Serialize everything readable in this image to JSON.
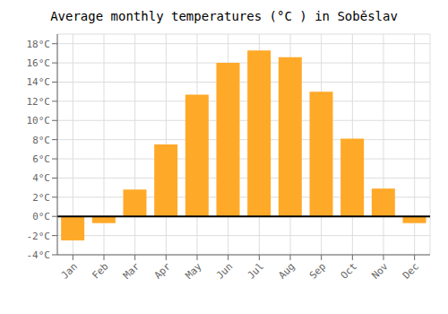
{
  "chart_data": {
    "type": "bar",
    "title": "Average monthly temperatures (°C ) in Soběslav",
    "categories": [
      "Jan",
      "Feb",
      "Mar",
      "Apr",
      "May",
      "Jun",
      "Jul",
      "Aug",
      "Sep",
      "Oct",
      "Nov",
      "Dec"
    ],
    "values": [
      -2.5,
      -0.7,
      2.8,
      7.5,
      12.7,
      16.0,
      17.3,
      16.6,
      13.0,
      8.1,
      2.9,
      -0.7
    ],
    "color": "#FFA928",
    "ylim": [
      -4,
      19
    ],
    "yticks": [
      {
        "value": -4,
        "label": "-4°C"
      },
      {
        "value": -2,
        "label": "-2°C"
      },
      {
        "value": 0,
        "label": "0°C"
      },
      {
        "value": 2,
        "label": "2°C"
      },
      {
        "value": 4,
        "label": "4°C"
      },
      {
        "value": 6,
        "label": "6°C"
      },
      {
        "value": 8,
        "label": "8°C"
      },
      {
        "value": 10,
        "label": "10°C"
      },
      {
        "value": 12,
        "label": "12°C"
      },
      {
        "value": 14,
        "label": "14°C"
      },
      {
        "value": 16,
        "label": "16°C"
      },
      {
        "value": 18,
        "label": "18°C"
      }
    ],
    "grid": true
  }
}
